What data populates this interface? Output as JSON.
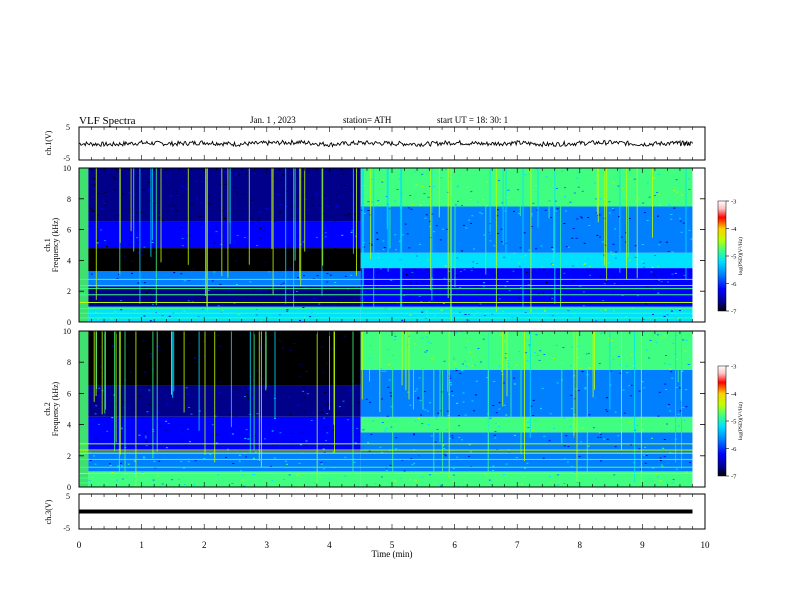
{
  "header": {
    "title": "VLF  Spectra",
    "date": "Jan.  1  , 2023",
    "station": "station= ATH",
    "start": "start  UT  =    18: 30: 1"
  },
  "colors": {
    "panel_border": "#000000",
    "dark_background": "#000040",
    "colormap": [
      "#000000",
      "#00008b",
      "#0000ff",
      "#0080ff",
      "#00e0ff",
      "#40ff80",
      "#c0ff00",
      "#ffd000",
      "#ff0000",
      "#ffc0c0",
      "#ffffff"
    ]
  },
  "chart_data": [
    {
      "type": "line",
      "name": "ch1-waveform",
      "ylabel": "ch.1(V)",
      "ylim": [
        -5,
        5
      ],
      "yticks": [
        "5",
        "-5"
      ],
      "x": [
        0,
        0.5,
        1,
        1.5,
        2,
        2.5,
        3,
        3.5,
        4,
        4.5,
        5,
        5.5,
        6,
        6.5,
        7,
        7.5,
        8,
        8.5,
        9,
        9.5,
        9.8
      ],
      "y": [
        0,
        -0.3,
        0.2,
        -0.1,
        0.3,
        -0.2,
        0.1,
        0.4,
        -0.3,
        0.2,
        0.0,
        -0.2,
        0.3,
        -0.1,
        0.2,
        -0.3,
        0.1,
        0.3,
        -0.2,
        0.1,
        0.0
      ]
    },
    {
      "type": "heatmap",
      "name": "ch1-spectrogram",
      "ylabel": "ch.1\nFrequency  (kHz)",
      "ylim": [
        0,
        10
      ],
      "yticks": [
        "0",
        "2",
        "4",
        "6",
        "8",
        "10"
      ],
      "xlim": [
        0,
        10
      ],
      "x_end": 9.8,
      "colorbar": {
        "label": "log(PSD)(V²/Hz)",
        "ticks": [
          "-3",
          "-4",
          "-5",
          "-6",
          "-7"
        ],
        "range": [
          -7,
          -3
        ]
      },
      "segments": [
        {
          "x": [
            0.15,
            4.5
          ],
          "f": [
            0,
            1
          ],
          "level": -5.3
        },
        {
          "x": [
            0.15,
            4.5
          ],
          "f": [
            1,
            2.3
          ],
          "level": -6.2
        },
        {
          "x": [
            0.15,
            4.5
          ],
          "f": [
            2.3,
            3.3
          ],
          "level": -5.8
        },
        {
          "x": [
            0.15,
            4.5
          ],
          "f": [
            3.3,
            4.8
          ],
          "level": -7
        },
        {
          "x": [
            0.15,
            4.5
          ],
          "f": [
            4.8,
            6.5
          ],
          "level": -6.0
        },
        {
          "x": [
            0.15,
            4.5
          ],
          "f": [
            6.5,
            10
          ],
          "level": -6.6
        },
        {
          "x": [
            4.5,
            9.8
          ],
          "f": [
            0,
            1
          ],
          "level": -5.2
        },
        {
          "x": [
            4.5,
            9.8
          ],
          "f": [
            1,
            3.5
          ],
          "level": -6.0
        },
        {
          "x": [
            4.5,
            9.8
          ],
          "f": [
            3.5,
            4.5
          ],
          "level": -5.1
        },
        {
          "x": [
            4.5,
            9.8
          ],
          "f": [
            4.5,
            7.5
          ],
          "level": -5.7
        },
        {
          "x": [
            4.5,
            9.8
          ],
          "f": [
            7.5,
            10
          ],
          "level": -5.0
        }
      ]
    },
    {
      "type": "heatmap",
      "name": "ch2-spectrogram",
      "ylabel": "ch.2\nFrequency  (kHz)",
      "ylim": [
        0,
        10
      ],
      "yticks": [
        "0",
        "2",
        "4",
        "6",
        "8",
        "10"
      ],
      "xlim": [
        0,
        10
      ],
      "x_end": 9.8,
      "colorbar": {
        "label": "log(PSD)(V²/Hz)",
        "ticks": [
          "-3",
          "-4",
          "-5",
          "-6",
          "-7"
        ],
        "range": [
          -7,
          -3
        ]
      },
      "segments": [
        {
          "x": [
            0.15,
            4.5
          ],
          "f": [
            0,
            1
          ],
          "level": -5.0
        },
        {
          "x": [
            0.15,
            4.5
          ],
          "f": [
            1,
            2.3
          ],
          "level": -5.4
        },
        {
          "x": [
            0.15,
            4.5
          ],
          "f": [
            2.3,
            4.5
          ],
          "level": -5.9
        },
        {
          "x": [
            0.15,
            4.5
          ],
          "f": [
            4.5,
            6.5
          ],
          "level": -6.2
        },
        {
          "x": [
            0.15,
            4.5
          ],
          "f": [
            6.5,
            10
          ],
          "level": -6.8
        },
        {
          "x": [
            4.5,
            9.8
          ],
          "f": [
            0,
            1
          ],
          "level": -5.0
        },
        {
          "x": [
            4.5,
            9.8
          ],
          "f": [
            1,
            3.5
          ],
          "level": -5.6
        },
        {
          "x": [
            4.5,
            9.8
          ],
          "f": [
            3.5,
            4.5
          ],
          "level": -5.0
        },
        {
          "x": [
            4.5,
            9.8
          ],
          "f": [
            4.5,
            7.5
          ],
          "level": -5.6
        },
        {
          "x": [
            4.5,
            9.8
          ],
          "f": [
            7.5,
            10
          ],
          "level": -5.0
        }
      ]
    },
    {
      "type": "line",
      "name": "ch3-waveform",
      "ylabel": "ch.3(V)",
      "ylim": [
        -5,
        5
      ],
      "yticks": [
        "5",
        "-5"
      ],
      "x": [
        0,
        9.8
      ],
      "y": [
        0,
        0
      ]
    }
  ],
  "xaxis": {
    "label": "Time  (min)",
    "ticks": [
      "0",
      "1",
      "2",
      "3",
      "4",
      "5",
      "6",
      "7",
      "8",
      "9",
      "10"
    ],
    "xlim": [
      0,
      10
    ]
  }
}
